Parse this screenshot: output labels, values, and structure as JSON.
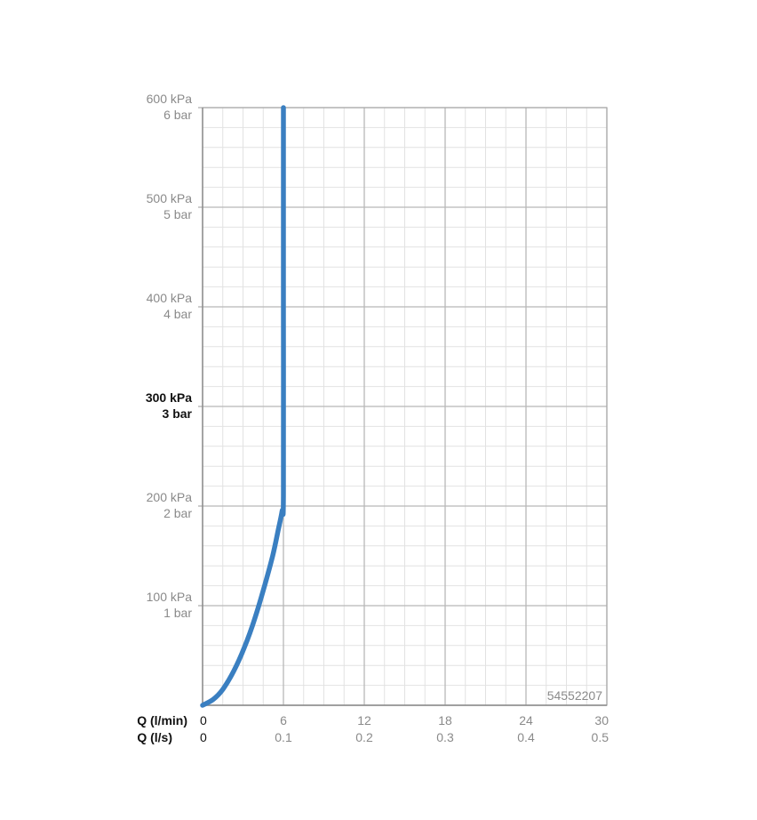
{
  "chart_data": {
    "type": "line",
    "x_axis_labels": [
      "Q (l/min)",
      "Q (l/s)"
    ],
    "x_ticks_lmin": [
      "0",
      "6",
      "12",
      "18",
      "24",
      "30"
    ],
    "x_ticks_ls": [
      "0",
      "0.1",
      "0.2",
      "0.3",
      "0.4",
      "0.5"
    ],
    "xlim": [
      0,
      30
    ],
    "ylim": [
      0,
      600
    ],
    "y_ticks": [
      {
        "value": 100,
        "kpa": "100 kPa",
        "bar": "1 bar",
        "highlight": false
      },
      {
        "value": 200,
        "kpa": "200 kPa",
        "bar": "2 bar",
        "highlight": false
      },
      {
        "value": 300,
        "kpa": "300 kPa",
        "bar": "3 bar",
        "highlight": true
      },
      {
        "value": 400,
        "kpa": "400 kPa",
        "bar": "4 bar",
        "highlight": false
      },
      {
        "value": 500,
        "kpa": "500 kPa",
        "bar": "5 bar",
        "highlight": false
      },
      {
        "value": 600,
        "kpa": "600 kPa",
        "bar": "6 bar",
        "highlight": false
      }
    ],
    "series": [
      {
        "color": "#3a7fc1",
        "x": [
          0,
          0.8,
          1.5,
          2.3,
          3.1,
          3.9,
          4.6,
          5.2,
          5.6,
          5.9,
          6.0,
          6.0,
          6.0
        ],
        "y": [
          0,
          6,
          16,
          34,
          58,
          88,
          120,
          150,
          175,
          195,
          210,
          400,
          600
        ]
      }
    ],
    "grid": true,
    "annotation": "54552207"
  }
}
